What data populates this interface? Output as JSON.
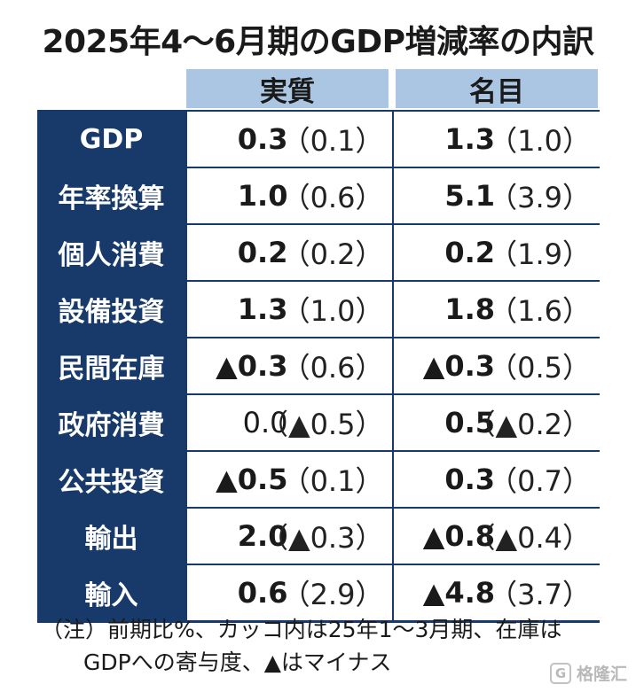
{
  "title": "2025年4〜6月期のGDP増減率の内訳",
  "columns": {
    "real": "実質",
    "nominal": "名目"
  },
  "rows": [
    {
      "label": "GDP",
      "real": "0.3",
      "real_prev": "（0.1）",
      "nominal": "1.3",
      "nominal_prev": "（1.0）"
    },
    {
      "label": "年率換算",
      "real": "1.0",
      "real_prev": "（0.6）",
      "nominal": "5.1",
      "nominal_prev": "（3.9）"
    },
    {
      "label": "個人消費",
      "real": "0.2",
      "real_prev": "（0.2）",
      "nominal": "0.2",
      "nominal_prev": "（1.9）"
    },
    {
      "label": "設備投資",
      "real": "1.3",
      "real_prev": "（1.0）",
      "nominal": "1.8",
      "nominal_prev": "（1.6）"
    },
    {
      "label": "民間在庫",
      "real": "▲0.3",
      "real_prev": "（0.6）",
      "nominal": "▲0.3",
      "nominal_prev": "（0.5）"
    },
    {
      "label": "政府消費",
      "real": "0.0",
      "real_prev": "（▲0.5）",
      "nominal": "0.5",
      "nominal_prev": "（▲0.2）"
    },
    {
      "label": "公共投資",
      "real": "▲0.5",
      "real_prev": "（0.1）",
      "nominal": "0.3",
      "nominal_prev": "（0.7）"
    },
    {
      "label": "輸出",
      "real": "2.0",
      "real_prev": "（▲0.3）",
      "nominal": "▲0.8",
      "nominal_prev": "（▲0.4）"
    },
    {
      "label": "輸入",
      "real": "0.6",
      "real_prev": "（2.9）",
      "nominal": "▲4.8",
      "nominal_prev": "（3.7）"
    }
  ],
  "note": {
    "line1": "（注）前期比%、カッコ内は25年1〜3月期、在庫は",
    "line2": "GDPへの寄与度、▲はマイナス"
  },
  "watermark": {
    "icon": "G",
    "text": "格隆汇"
  },
  "colors": {
    "header_navy": "#173a6b",
    "column_head_blue": "#aac6e2"
  }
}
